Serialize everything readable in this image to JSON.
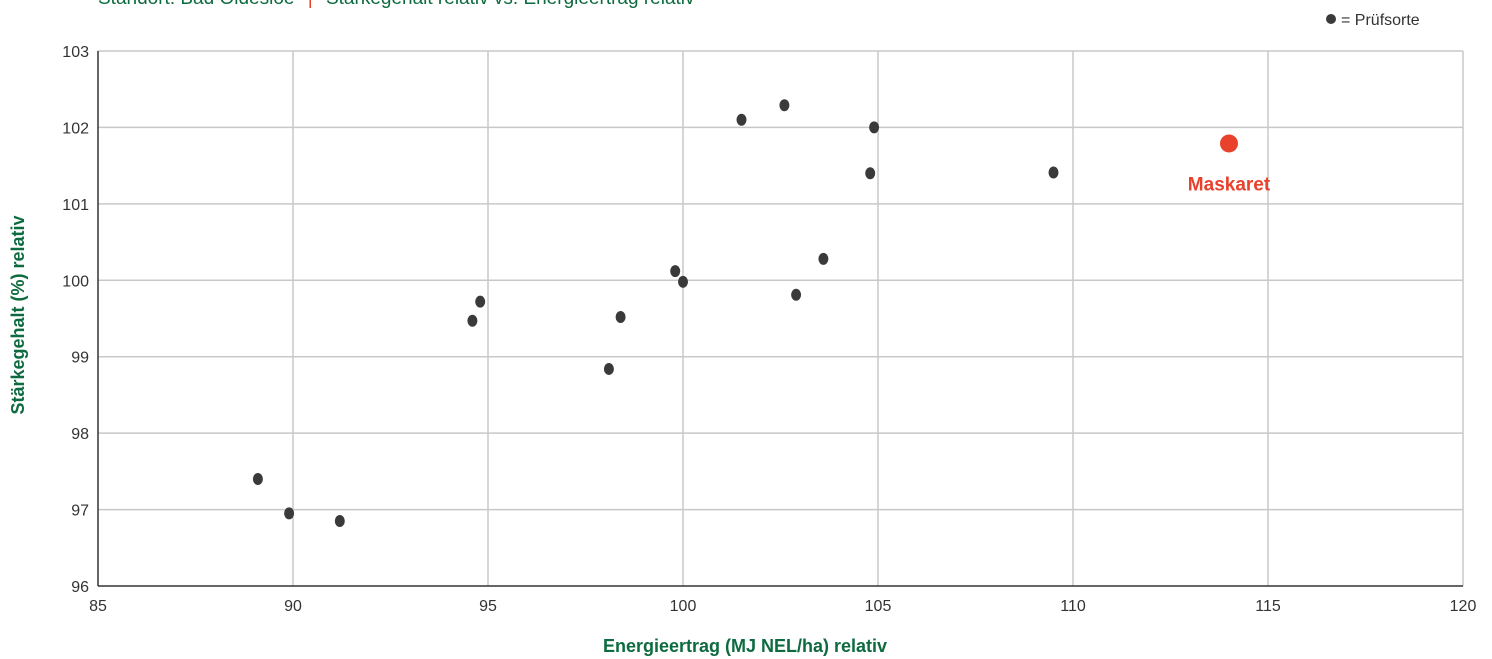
{
  "subtitle": {
    "left": "Standort: Bad Oldesloe",
    "separator": "|",
    "right": "Stärkegehalt relativ vs. Energieertrag relativ"
  },
  "legend": {
    "marker": "●",
    "text": "= Prüfsorte"
  },
  "colors": {
    "accent_green": "#0d6b3f",
    "highlight_red": "#e8412c",
    "point": "#3a3a3a",
    "grid": "#c8c8c8",
    "separator_red": "#e8412c"
  },
  "chart_data": {
    "type": "scatter",
    "xlabel": "Energieertrag (MJ NEL/ha) relativ",
    "ylabel": "Stärkegehalt (%) relativ",
    "xlim": [
      85,
      120
    ],
    "ylim": [
      96,
      103
    ],
    "xticks": [
      85,
      90,
      95,
      100,
      105,
      110,
      115,
      120
    ],
    "yticks": [
      96,
      97,
      98,
      99,
      100,
      101,
      102,
      103
    ],
    "grid": true,
    "legend_position": "top-right",
    "series": [
      {
        "name": "Prüfsorte",
        "points": [
          {
            "x": 89.1,
            "y": 97.4
          },
          {
            "x": 89.9,
            "y": 96.95
          },
          {
            "x": 91.2,
            "y": 96.85
          },
          {
            "x": 94.6,
            "y": 99.47
          },
          {
            "x": 94.8,
            "y": 99.72
          },
          {
            "x": 98.1,
            "y": 98.84
          },
          {
            "x": 98.4,
            "y": 99.52
          },
          {
            "x": 99.8,
            "y": 100.12
          },
          {
            "x": 100.0,
            "y": 99.98
          },
          {
            "x": 101.5,
            "y": 102.1
          },
          {
            "x": 102.6,
            "y": 102.29
          },
          {
            "x": 102.9,
            "y": 99.81
          },
          {
            "x": 103.6,
            "y": 100.28
          },
          {
            "x": 104.8,
            "y": 101.4
          },
          {
            "x": 104.9,
            "y": 102.0
          },
          {
            "x": 109.5,
            "y": 101.41
          }
        ]
      }
    ],
    "highlight": {
      "label": "Maskaret",
      "x": 114.0,
      "y": 101.79
    }
  }
}
